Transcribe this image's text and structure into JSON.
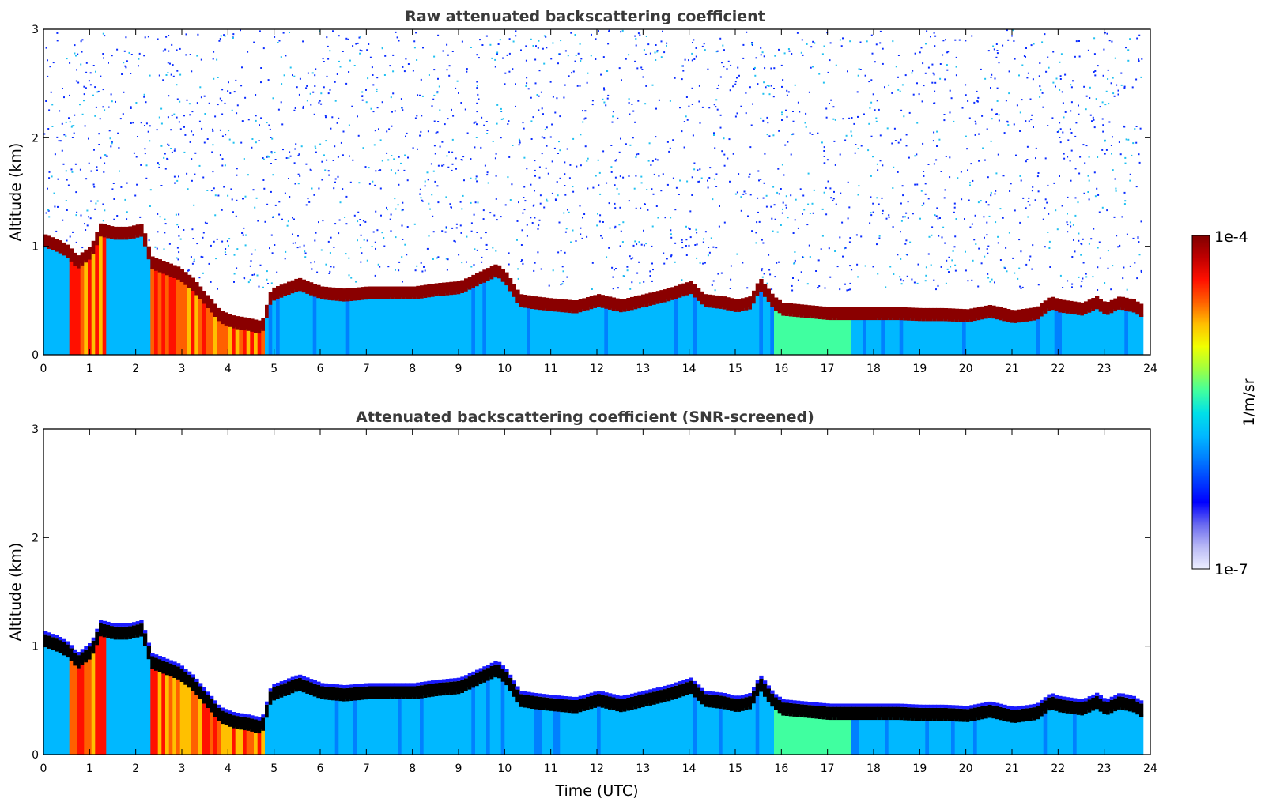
{
  "chart_data": [
    {
      "type": "heatmap",
      "title": "Raw attenuated backscattering coefficient",
      "xlabel": "",
      "ylabel": "Altitude (km)",
      "xlim": [
        0,
        24
      ],
      "ylim": [
        0,
        3
      ],
      "xticks": [
        "0",
        "1",
        "2",
        "3",
        "4",
        "5",
        "6",
        "7",
        "8",
        "9",
        "10",
        "11",
        "12",
        "13",
        "14",
        "15",
        "16",
        "17",
        "18",
        "19",
        "20",
        "21",
        "22",
        "23",
        "24"
      ],
      "yticks": [
        "0",
        "1",
        "2",
        "3"
      ],
      "screened": false,
      "layer_top_km": [
        [
          0,
          1.05
        ],
        [
          0.3,
          1.0
        ],
        [
          0.5,
          0.95
        ],
        [
          0.7,
          0.85
        ],
        [
          1.0,
          0.95
        ],
        [
          1.2,
          1.15
        ],
        [
          1.5,
          1.12
        ],
        [
          1.8,
          1.12
        ],
        [
          2.1,
          1.15
        ],
        [
          2.3,
          0.85
        ],
        [
          2.6,
          0.8
        ],
        [
          2.9,
          0.75
        ],
        [
          3.2,
          0.65
        ],
        [
          3.5,
          0.5
        ],
        [
          3.8,
          0.35
        ],
        [
          4.1,
          0.3
        ],
        [
          4.4,
          0.28
        ],
        [
          4.7,
          0.25
        ],
        [
          4.9,
          0.55
        ],
        [
          5.2,
          0.6
        ],
        [
          5.5,
          0.65
        ],
        [
          6.0,
          0.57
        ],
        [
          6.5,
          0.55
        ],
        [
          7.0,
          0.57
        ],
        [
          7.5,
          0.57
        ],
        [
          8.0,
          0.57
        ],
        [
          8.5,
          0.6
        ],
        [
          9.0,
          0.62
        ],
        [
          9.5,
          0.72
        ],
        [
          9.8,
          0.78
        ],
        [
          10.0,
          0.7
        ],
        [
          10.3,
          0.5
        ],
        [
          10.6,
          0.48
        ],
        [
          11.0,
          0.46
        ],
        [
          11.5,
          0.44
        ],
        [
          12.0,
          0.5
        ],
        [
          12.5,
          0.45
        ],
        [
          13.0,
          0.5
        ],
        [
          13.5,
          0.55
        ],
        [
          14.0,
          0.62
        ],
        [
          14.3,
          0.5
        ],
        [
          14.7,
          0.48
        ],
        [
          15.0,
          0.45
        ],
        [
          15.3,
          0.48
        ],
        [
          15.5,
          0.65
        ],
        [
          15.8,
          0.48
        ],
        [
          16.0,
          0.42
        ],
        [
          16.5,
          0.4
        ],
        [
          17.0,
          0.38
        ],
        [
          17.5,
          0.38
        ],
        [
          18.0,
          0.38
        ],
        [
          18.5,
          0.38
        ],
        [
          19.0,
          0.37
        ],
        [
          19.5,
          0.37
        ],
        [
          20.0,
          0.36
        ],
        [
          20.5,
          0.4
        ],
        [
          21.0,
          0.35
        ],
        [
          21.5,
          0.38
        ],
        [
          21.8,
          0.48
        ],
        [
          22.0,
          0.45
        ],
        [
          22.5,
          0.42
        ],
        [
          22.8,
          0.48
        ],
        [
          23.0,
          0.42
        ],
        [
          23.3,
          0.48
        ],
        [
          23.6,
          0.45
        ],
        [
          23.8,
          0.4
        ]
      ]
    },
    {
      "type": "heatmap",
      "title": "Attenuated backscattering coefficient (SNR-screened)",
      "xlabel": "Time (UTC)",
      "ylabel": "Altitude (km)",
      "xlim": [
        0,
        24
      ],
      "ylim": [
        0,
        3
      ],
      "xticks": [
        "0",
        "1",
        "2",
        "3",
        "4",
        "5",
        "6",
        "7",
        "8",
        "9",
        "10",
        "11",
        "12",
        "13",
        "14",
        "15",
        "16",
        "17",
        "18",
        "19",
        "20",
        "21",
        "22",
        "23",
        "24"
      ],
      "yticks": [
        "0",
        "1",
        "2",
        "3"
      ],
      "screened": true
    }
  ],
  "colorbar": {
    "max_label": "1e-4",
    "min_label": "1e-7",
    "unit_label": "1/m/sr",
    "colors": [
      "#eef0ff",
      "#b8b8f5",
      "#6a6af0",
      "#0000ff",
      "#0040ff",
      "#0080ff",
      "#00b8ff",
      "#00e0e8",
      "#40ffa0",
      "#a0ff40",
      "#f0ff00",
      "#ffc000",
      "#ff6000",
      "#ff1000",
      "#c00000",
      "#800000"
    ]
  }
}
